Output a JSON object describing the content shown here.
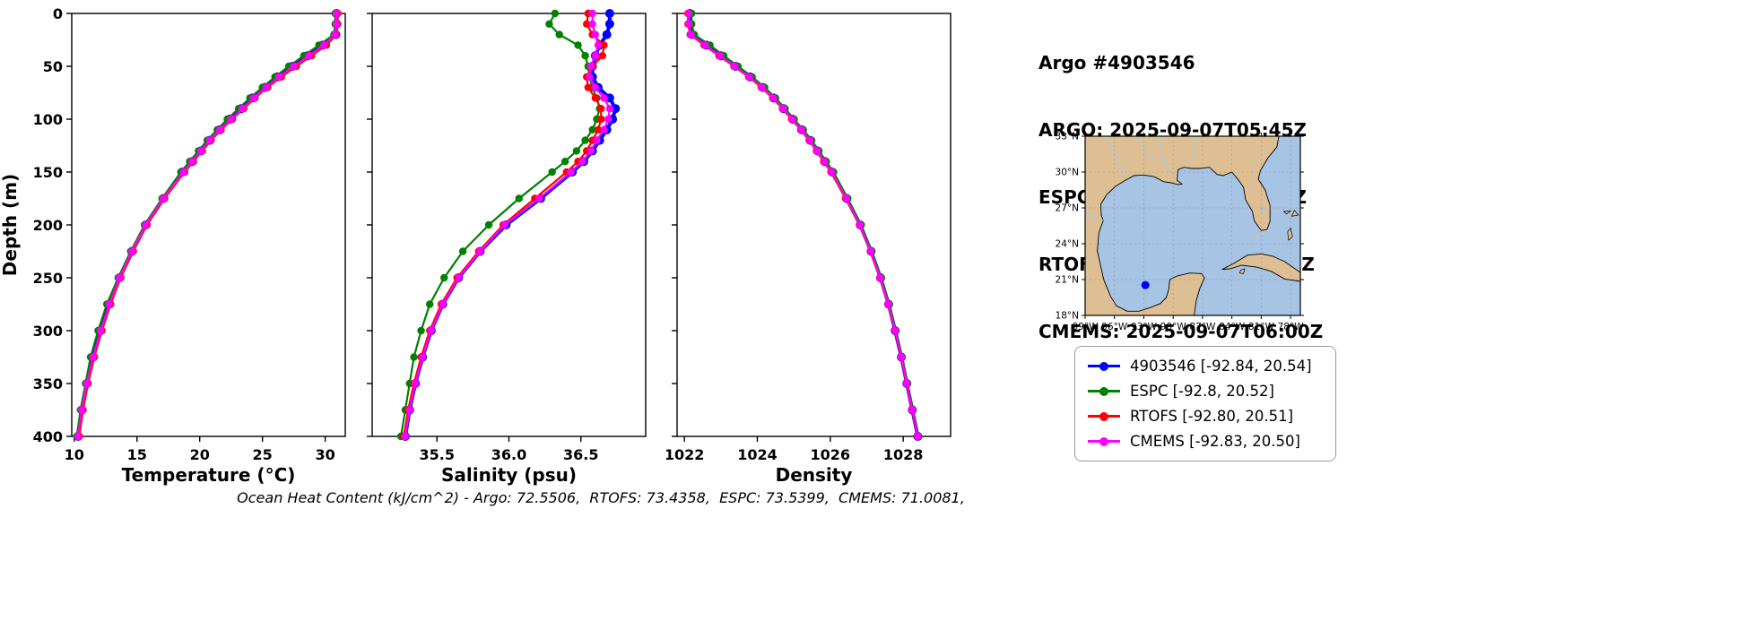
{
  "header": {
    "title": "Argo #4903546",
    "argo_time": "ARGO: 2025-09-07T05:45Z",
    "espc_time": "ESPC : 2025-09-07T06:00Z",
    "rtofs_time": "RTOFS: 2025-09-07T00:00Z",
    "cmems_time": "CMEMS: 2025-09-07T06:00Z"
  },
  "footer": {
    "text": "Ocean Heat Content (kJ/cm^2) - Argo: 72.5506,  RTOFS: 73.4358,  ESPC: 73.5399,  CMEMS: 71.0081,"
  },
  "legend": [
    {
      "label": "4903546 [-92.84, 20.54]",
      "color": "#0000ff"
    },
    {
      "label": "ESPC [-92.8, 20.52]",
      "color": "#008000"
    },
    {
      "label": "RTOFS [-92.80, 20.51]",
      "color": "#ff0000"
    },
    {
      "label": "CMEMS [-92.83, 20.50]",
      "color": "#ff00ff"
    }
  ],
  "map": {
    "water_color": "#a7c4e4",
    "land_color": "#ddbf93",
    "river_color": "#aac8e8",
    "extent": {
      "lon_min": -99,
      "lon_max": -77,
      "lat_min": 18,
      "lat_max": 33
    },
    "lat_ticks": [
      {
        "label": "33°N",
        "value": 33
      },
      {
        "label": "30°N",
        "value": 30
      },
      {
        "label": "27°N",
        "value": 27
      },
      {
        "label": "24°N",
        "value": 24
      },
      {
        "label": "21°N",
        "value": 21
      },
      {
        "label": "18°N",
        "value": 18
      }
    ],
    "lon_ticks": [
      {
        "label": "99°W",
        "value": -99
      },
      {
        "label": "96°W",
        "value": -96
      },
      {
        "label": "93°W",
        "value": -93
      },
      {
        "label": "90°W",
        "value": -90
      },
      {
        "label": "87°W",
        "value": -87
      },
      {
        "label": "84°W",
        "value": -84
      },
      {
        "label": "81°W",
        "value": -81
      },
      {
        "label": "78°W",
        "value": -78
      }
    ],
    "marker": {
      "lon": -92.84,
      "lat": 20.54,
      "color": "#0000ff"
    }
  },
  "chart_data": [
    {
      "type": "line",
      "xlabel": "Temperature (°C)",
      "ylabel": "Depth (m)",
      "xlim": [
        9.8,
        31.6
      ],
      "xticks": [
        10,
        15,
        20,
        25,
        30
      ],
      "xtick_labels": [
        "10",
        "15",
        "20",
        "25",
        "30"
      ],
      "ylim": [
        0,
        400
      ],
      "yticks": [
        0,
        50,
        100,
        150,
        200,
        250,
        300,
        350,
        400
      ],
      "depths": [
        0,
        10,
        20,
        30,
        40,
        50,
        60,
        70,
        80,
        90,
        100,
        110,
        120,
        130,
        140,
        150,
        175,
        200,
        225,
        250,
        275,
        300,
        325,
        350,
        375,
        400
      ],
      "series": [
        {
          "name": "4903546",
          "color": "#0000ff",
          "lw": 4,
          "ms": 5,
          "values": [
            30.9,
            30.9,
            30.85,
            29.8,
            28.6,
            27.4,
            26.2,
            25.2,
            24.2,
            23.3,
            22.4,
            21.6,
            20.8,
            20.1,
            19.4,
            18.6,
            17.1,
            15.7,
            14.6,
            13.6,
            12.8,
            12.1,
            11.5,
            11.0,
            10.6,
            10.3
          ]
        },
        {
          "name": "ESPC",
          "color": "#008000",
          "lw": 2.2,
          "ms": 4.2,
          "values": [
            30.8,
            30.8,
            30.7,
            29.5,
            28.3,
            27.1,
            26.0,
            25.0,
            24.0,
            23.1,
            22.2,
            21.4,
            20.6,
            19.9,
            19.2,
            18.5,
            17.0,
            15.6,
            14.5,
            13.5,
            12.6,
            11.9,
            11.3,
            10.9,
            10.5,
            10.2
          ]
        },
        {
          "name": "RTOFS",
          "color": "#ff0000",
          "lw": 2.2,
          "ms": 4.2,
          "values": [
            31.0,
            31.0,
            30.9,
            30.1,
            28.9,
            27.7,
            26.5,
            25.4,
            24.4,
            23.5,
            22.6,
            21.7,
            20.9,
            20.2,
            19.5,
            18.8,
            17.2,
            15.8,
            14.7,
            13.7,
            12.9,
            12.2,
            11.6,
            11.1,
            10.7,
            10.4
          ]
        },
        {
          "name": "CMEMS",
          "color": "#ff00ff",
          "lw": 2.2,
          "ms": 4.2,
          "values": [
            30.9,
            30.9,
            30.8,
            29.9,
            28.7,
            27.5,
            26.3,
            25.3,
            24.3,
            23.4,
            22.5,
            21.6,
            20.8,
            20.1,
            19.4,
            18.7,
            17.1,
            15.7,
            14.6,
            13.6,
            12.8,
            12.1,
            11.5,
            11.0,
            10.6,
            10.3
          ]
        }
      ]
    },
    {
      "type": "line",
      "xlabel": "Salinity (psu)",
      "ylabel": "",
      "xlim": [
        35.05,
        36.95
      ],
      "xticks": [
        35.5,
        36.0,
        36.5
      ],
      "xtick_labels": [
        "35.5",
        "36.0",
        "36.5"
      ],
      "ylim": [
        0,
        400
      ],
      "yticks": [
        0,
        50,
        100,
        150,
        200,
        250,
        300,
        350,
        400
      ],
      "depths": [
        0,
        10,
        20,
        30,
        40,
        50,
        60,
        70,
        80,
        90,
        100,
        110,
        120,
        130,
        140,
        150,
        175,
        200,
        225,
        250,
        275,
        300,
        325,
        350,
        375,
        400
      ],
      "series": [
        {
          "name": "4903546",
          "color": "#0000ff",
          "lw": 4,
          "ms": 5,
          "values": [
            36.7,
            36.7,
            36.68,
            36.63,
            36.6,
            36.58,
            36.58,
            36.62,
            36.7,
            36.74,
            36.72,
            36.68,
            36.63,
            36.58,
            36.52,
            36.44,
            36.22,
            35.98,
            35.8,
            35.65,
            35.54,
            35.46,
            35.4,
            35.35,
            35.31,
            35.28
          ]
        },
        {
          "name": "ESPC",
          "color": "#008000",
          "lw": 2.2,
          "ms": 4.2,
          "values": [
            36.32,
            36.28,
            36.35,
            36.48,
            36.53,
            36.55,
            36.56,
            36.58,
            36.61,
            36.63,
            36.61,
            36.58,
            36.53,
            36.47,
            36.39,
            36.3,
            36.07,
            35.86,
            35.68,
            35.55,
            35.45,
            35.39,
            35.34,
            35.31,
            35.28,
            35.25
          ]
        },
        {
          "name": "RTOFS",
          "color": "#ff0000",
          "lw": 2.2,
          "ms": 4.2,
          "values": [
            36.55,
            36.54,
            36.58,
            36.66,
            36.65,
            36.58,
            36.54,
            36.55,
            36.6,
            36.64,
            36.64,
            36.62,
            36.58,
            36.54,
            36.48,
            36.4,
            36.18,
            35.96,
            35.79,
            35.64,
            35.53,
            35.45,
            35.39,
            35.34,
            35.3,
            35.27
          ]
        },
        {
          "name": "CMEMS",
          "color": "#ff00ff",
          "lw": 2.2,
          "ms": 4.2,
          "values": [
            36.58,
            36.58,
            36.6,
            36.62,
            36.6,
            36.57,
            36.56,
            36.6,
            36.66,
            36.7,
            36.69,
            36.66,
            36.61,
            36.57,
            36.51,
            36.43,
            36.21,
            35.97,
            35.8,
            35.65,
            35.54,
            35.46,
            35.4,
            35.35,
            35.31,
            35.28
          ]
        }
      ]
    },
    {
      "type": "line",
      "xlabel": "Density",
      "ylabel": "",
      "xlim": [
        1021.8,
        1029.3
      ],
      "xticks": [
        1022,
        1024,
        1026,
        1028
      ],
      "xtick_labels": [
        "1022",
        "1024",
        "1026",
        "1028"
      ],
      "ylim": [
        0,
        400
      ],
      "yticks": [
        0,
        50,
        100,
        150,
        200,
        250,
        300,
        350,
        400
      ],
      "depths": [
        0,
        10,
        20,
        30,
        40,
        50,
        60,
        70,
        80,
        90,
        100,
        110,
        120,
        130,
        140,
        150,
        175,
        200,
        225,
        250,
        275,
        300,
        325,
        350,
        375,
        400
      ],
      "series": [
        {
          "name": "4903546",
          "color": "#0000ff",
          "lw": 4,
          "ms": 5,
          "values": [
            1022.15,
            1022.15,
            1022.2,
            1022.6,
            1023.0,
            1023.4,
            1023.8,
            1024.15,
            1024.45,
            1024.72,
            1024.97,
            1025.22,
            1025.45,
            1025.65,
            1025.85,
            1026.05,
            1026.45,
            1026.82,
            1027.12,
            1027.38,
            1027.6,
            1027.78,
            1027.95,
            1028.1,
            1028.25,
            1028.4
          ]
        },
        {
          "name": "ESPC",
          "color": "#008000",
          "lw": 2.2,
          "ms": 4.2,
          "values": [
            1022.2,
            1022.2,
            1022.27,
            1022.7,
            1023.08,
            1023.47,
            1023.86,
            1024.2,
            1024.5,
            1024.76,
            1025.01,
            1025.26,
            1025.49,
            1025.69,
            1025.89,
            1026.09,
            1026.48,
            1026.85,
            1027.14,
            1027.4,
            1027.62,
            1027.8,
            1027.97,
            1028.12,
            1028.26,
            1028.41
          ]
        },
        {
          "name": "RTOFS",
          "color": "#ff0000",
          "lw": 2.2,
          "ms": 4.2,
          "values": [
            1022.1,
            1022.1,
            1022.16,
            1022.54,
            1022.95,
            1023.36,
            1023.76,
            1024.11,
            1024.42,
            1024.69,
            1024.94,
            1025.19,
            1025.42,
            1025.62,
            1025.82,
            1026.02,
            1026.42,
            1026.8,
            1027.1,
            1027.36,
            1027.58,
            1027.77,
            1027.94,
            1028.09,
            1028.24,
            1028.39
          ]
        },
        {
          "name": "CMEMS",
          "color": "#ff00ff",
          "lw": 2.2,
          "ms": 4.2,
          "values": [
            1022.12,
            1022.12,
            1022.18,
            1022.57,
            1022.98,
            1023.38,
            1023.78,
            1024.13,
            1024.44,
            1024.71,
            1024.96,
            1025.21,
            1025.44,
            1025.64,
            1025.84,
            1026.04,
            1026.44,
            1026.81,
            1027.11,
            1027.37,
            1027.59,
            1027.78,
            1027.95,
            1028.1,
            1028.25,
            1028.4
          ]
        }
      ]
    }
  ]
}
